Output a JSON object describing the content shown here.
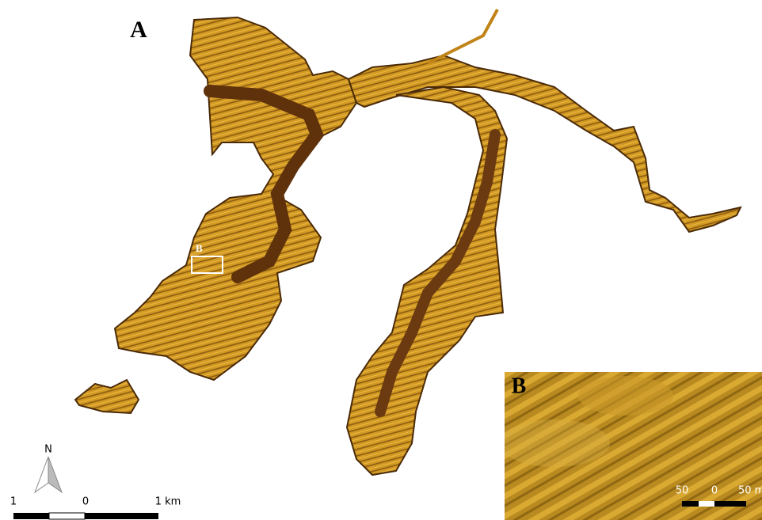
{
  "map": {
    "panel_label": "A",
    "inset_box_label": "B",
    "north_label": "N",
    "scale_labels": [
      "1",
      "0",
      "1 km"
    ],
    "inset": {
      "label": "B",
      "scale_labels": [
        "50",
        "0",
        "50 m"
      ]
    }
  }
}
